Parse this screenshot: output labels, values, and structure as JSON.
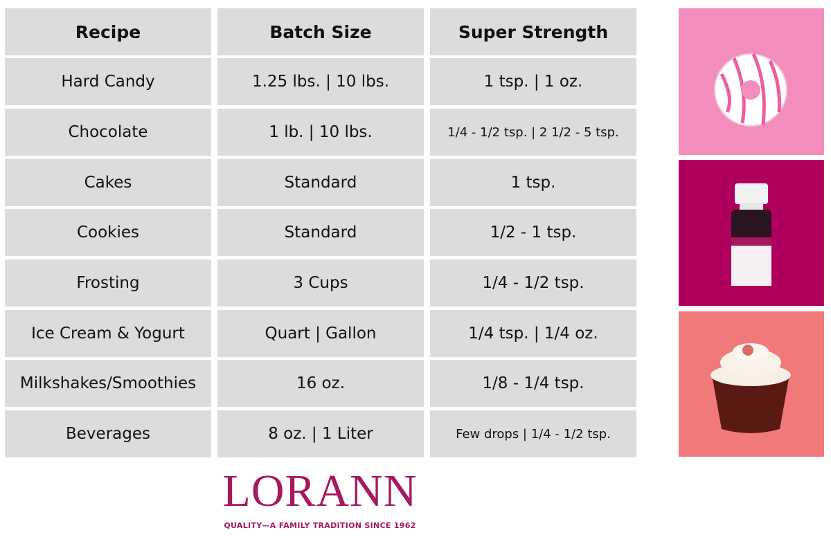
{
  "table": {
    "header": [
      "Recipe",
      "Batch Size",
      "Super Strength"
    ],
    "rows": [
      [
        "Hard Candy",
        "1.25 lbs. | 10 lbs.",
        "1 tsp. | 1 oz."
      ],
      [
        "Chocolate",
        "1 lb. | 10 lbs.",
        "1/4 -  1/2 tsp. | 2 1/2 - 5 tsp."
      ],
      [
        "Cakes",
        "Standard",
        "1 tsp."
      ],
      [
        "Cookies",
        "Standard",
        "1/2 - 1 tsp."
      ],
      [
        "Frosting",
        "3 Cups",
        "1/4 - 1/2 tsp."
      ],
      [
        "Ice Cream & Yogurt",
        "Quart | Gallon",
        "1/4 tsp. | 1/4 oz."
      ],
      [
        "Milkshakes/Smoothies",
        "16 oz.",
        "1/8 - 1/4 tsp."
      ],
      [
        "Beverages",
        "8 oz. | 1 Liter",
        "Few drops | 1/4 - 1/2 tsp."
      ]
    ]
  },
  "logo": {
    "name": "LORANN",
    "tagline": "QUALITY—A FAMILY TRADITION SINCE 1962"
  }
}
